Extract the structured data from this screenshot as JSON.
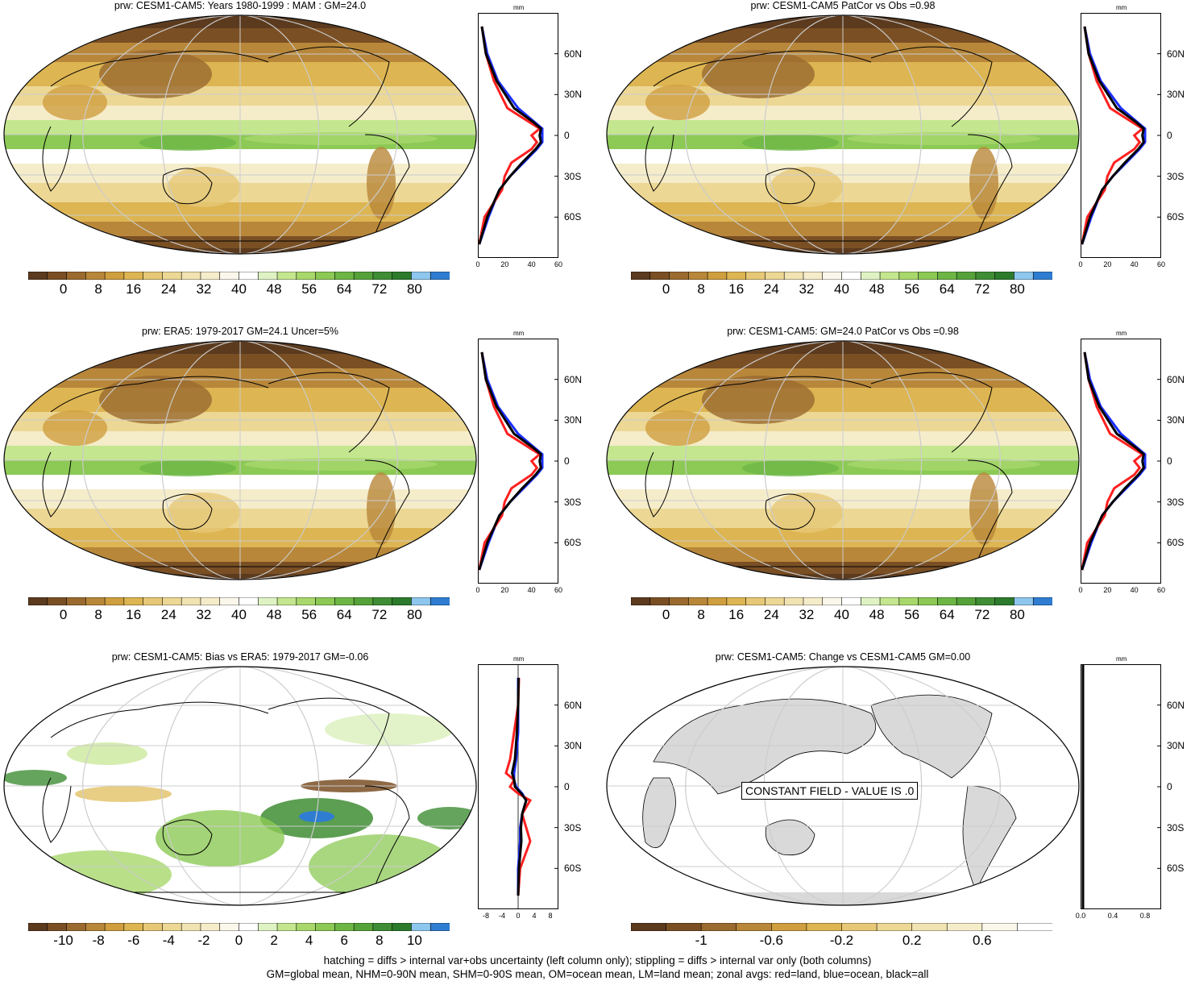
{
  "panels": [
    {
      "id": "p1",
      "title": "prw: CESM1-CAM5: Years 1980-1999 : MAM : GM=24.0",
      "kind": "mean",
      "stipple": true
    },
    {
      "id": "p2",
      "title": "prw: CESM1-CAM5 PatCor vs Obs =0.98",
      "kind": "mean",
      "stipple": false
    },
    {
      "id": "p3",
      "title": "prw: ERA5: 1979-2017 GM=24.1 Uncer=5%",
      "kind": "mean",
      "stipple": true
    },
    {
      "id": "p4",
      "title": "prw: CESM1-CAM5: GM=24.0 PatCor vs Obs =0.98",
      "kind": "mean",
      "stipple": false
    },
    {
      "id": "p5",
      "title": "prw: CESM1-CAM5: Bias vs ERA5: 1979-2017 GM=-0.06",
      "kind": "bias",
      "stipple": true
    },
    {
      "id": "p6",
      "title": "prw: CESM1-CAM5: Change vs CESM1-CAM5 GM=0.00",
      "kind": "const",
      "stipple": false
    }
  ],
  "colorbars": {
    "mean": {
      "colors": [
        "#5b3a1e",
        "#7a4f24",
        "#9a6a2f",
        "#b8873a",
        "#cf9f3f",
        "#ddb552",
        "#e6c877",
        "#ecd795",
        "#f1e3b2",
        "#f5ecca",
        "#fbf7ea",
        "#ffffff",
        "#dff2c3",
        "#c4e68f",
        "#a8d86b",
        "#8cc955",
        "#6db646",
        "#55a23a",
        "#3f8d34",
        "#2c7a2c",
        "#8ec7ee",
        "#2f7dd1"
      ],
      "labels": [
        "0",
        "8",
        "16",
        "24",
        "32",
        "40",
        "48",
        "56",
        "64",
        "72",
        "80"
      ]
    },
    "bias": {
      "colors": [
        "#5b3a1e",
        "#7a4f24",
        "#9a6a2f",
        "#b8873a",
        "#cf9f3f",
        "#ddb552",
        "#e6c877",
        "#ecd795",
        "#f1e3b2",
        "#f5ecca",
        "#fbf7ea",
        "#ffffff",
        "#dff2c3",
        "#c4e68f",
        "#a8d86b",
        "#8cc955",
        "#6db646",
        "#55a23a",
        "#3f8d34",
        "#2c7a2c",
        "#8ec7ee",
        "#2f7dd1"
      ],
      "labels": [
        "-10",
        "-8",
        "-6",
        "-4",
        "-2",
        "0",
        "2",
        "4",
        "6",
        "8",
        "10"
      ]
    },
    "change": {
      "colors": [
        "#5b3a1e",
        "#7a4f24",
        "#9a6a2f",
        "#b8873a",
        "#cf9f3f",
        "#ddb552",
        "#e6c877",
        "#ecd795",
        "#f1e3b2",
        "#f5ecca",
        "#fbf7ea",
        "#ffffff"
      ],
      "labels": [
        "-1",
        "-0.6",
        "-0.2",
        "0.2",
        "0.6"
      ]
    }
  },
  "zonal": {
    "unit": "mm",
    "lat_labels": [
      "60N",
      "30N",
      "0",
      "30S",
      "60S"
    ],
    "mean_xticks": [
      "0",
      "20",
      "40",
      "60"
    ],
    "bias_xticks": [
      "-8",
      "-4",
      "0",
      "4",
      "8"
    ],
    "change_xticks": [
      "0.0",
      "0.4",
      "0.8"
    ],
    "series_colors": {
      "land": "#ff2020",
      "ocean": "#1a2fff",
      "all": "#000000"
    }
  },
  "constant_field_text": "CONSTANT FIELD - VALUE IS .0",
  "footer": {
    "line1": "hatching = diffs > internal var+obs uncertainty (left column only); stippling = diffs > internal var only (both columns)",
    "line2": "GM=global mean, NHM=0-90N mean, SHM=0-90S mean, OM=ocean mean, LM=land mean; zonal avgs: red=land, blue=ocean, black=all"
  },
  "chart_data": [
    {
      "type": "line",
      "title": "",
      "xlabel": "mm",
      "ylabel": "",
      "note": "zonal mean precipitable water, top-left panel",
      "lat": [
        80,
        60,
        40,
        20,
        10,
        5,
        0,
        -5,
        -10,
        -20,
        -30,
        -40,
        -60,
        -80
      ],
      "series": [
        {
          "name": "land",
          "values": [
            3,
            6,
            12,
            22,
            38,
            46,
            40,
            44,
            40,
            25,
            20,
            18,
            5,
            1
          ]
        },
        {
          "name": "ocean",
          "values": [
            3,
            7,
            15,
            30,
            42,
            48,
            48,
            48,
            44,
            34,
            24,
            16,
            8,
            1
          ]
        },
        {
          "name": "all",
          "values": [
            3,
            6,
            14,
            27,
            41,
            47,
            46,
            47,
            43,
            33,
            24,
            16,
            7,
            1
          ]
        }
      ],
      "xlim": [
        0,
        60
      ]
    },
    {
      "type": "line",
      "xlabel": "mm",
      "note": "zonal mean, bias panel",
      "lat": [
        80,
        60,
        40,
        20,
        10,
        5,
        0,
        -5,
        -10,
        -20,
        -30,
        -40,
        -60,
        -80
      ],
      "series": [
        {
          "name": "land",
          "values": [
            0.2,
            0,
            -1,
            -2,
            -3,
            -1,
            -2,
            0,
            3,
            1,
            2,
            3,
            0.5,
            0
          ]
        },
        {
          "name": "ocean",
          "values": [
            0,
            0,
            0,
            -0.5,
            -1,
            -1,
            -0.5,
            1,
            2,
            1,
            0.5,
            0.5,
            0,
            0
          ]
        },
        {
          "name": "all",
          "values": [
            0.1,
            0,
            -0.3,
            -0.8,
            -1.5,
            -1,
            -0.8,
            0.8,
            2,
            1,
            0.7,
            0.8,
            0.2,
            0
          ]
        }
      ],
      "xlim": [
        -10,
        10
      ]
    }
  ]
}
